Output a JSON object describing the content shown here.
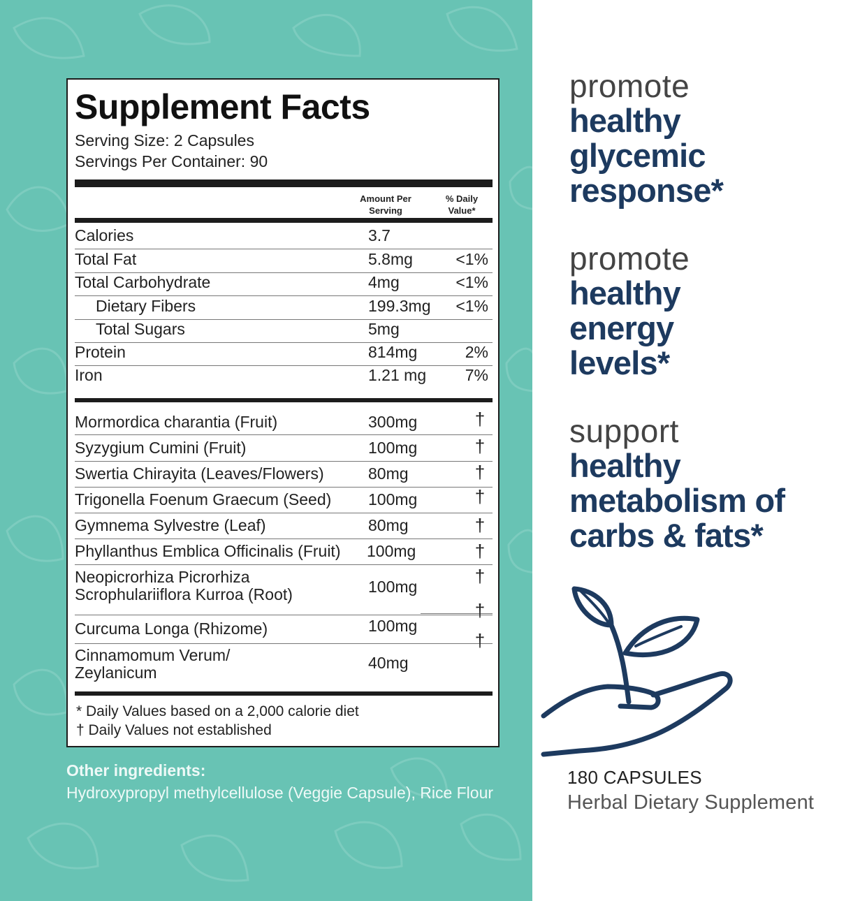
{
  "facts": {
    "title": "Supplement Facts",
    "serving_size": "Serving Size: 2 Capsules",
    "servings_per_container": "Servings Per Container: 90",
    "col_amount": "Amount Per Serving",
    "col_dv": "% Daily Value*",
    "nutrients": [
      {
        "name": "Calories",
        "amount": "3.7",
        "dv": ""
      },
      {
        "name": "Total Fat",
        "amount": "5.8mg",
        "dv": "<1%"
      },
      {
        "name": "Total Carbohydrate",
        "amount": "4mg",
        "dv": "<1%"
      },
      {
        "name": "Dietary Fibers",
        "amount": "199.3mg",
        "dv": "<1%"
      },
      {
        "name": "Total Sugars",
        "amount": "5mg",
        "dv": ""
      },
      {
        "name": "Protein",
        "amount": "814mg",
        "dv": "2%"
      },
      {
        "name": "Iron",
        "amount": "1.21 mg",
        "dv": "7%"
      }
    ],
    "herbs": [
      {
        "name": "Mormordica charantia (Fruit)",
        "amount": "300mg",
        "dv": "†"
      },
      {
        "name": "Syzygium Cumini (Fruit)",
        "amount": "100mg",
        "dv": "†"
      },
      {
        "name": "Swertia Chirayita  (Leaves/Flowers)",
        "amount": "80mg",
        "dv": "†"
      },
      {
        "name": "Trigonella Foenum Graecum (Seed)",
        "amount": "100mg",
        "dv": "†"
      },
      {
        "name": "Gymnema Sylvestre (Leaf)",
        "amount": "80mg",
        "dv": "†"
      },
      {
        "name": "Phyllanthus Emblica Officinalis (Fruit)",
        "amount": "100mg",
        "dv": "†"
      },
      {
        "name_line1": "Neopicrorhiza Picrorhiza",
        "name_line2": "Scrophulariiflora Kurroa (Root)",
        "amount": "100mg",
        "dv": "†"
      },
      {
        "name": "Curcuma Longa (Rhizome)",
        "amount": "100mg",
        "dv": "†"
      },
      {
        "name_line1": "Cinnamomum Verum/",
        "name_line2": "Zeylanicum",
        "amount": "40mg",
        "dv": "†"
      }
    ],
    "footnote1": "* Daily Values based on a 2,000 calorie diet",
    "footnote2": "† Daily Values not established"
  },
  "other": {
    "heading": "Other ingredients:",
    "text": "Hydroxypropyl methylcellulose (Veggie Capsule), Rice Flour"
  },
  "claims": [
    {
      "light": "promote",
      "bold1": "healthy",
      "bold2": "glycemic",
      "bold3": "response*"
    },
    {
      "light": "promote",
      "bold1": "healthy",
      "bold2": "energy",
      "bold3": "levels*"
    },
    {
      "light": "support",
      "bold1": "healthy",
      "bold2": "metabolism of",
      "bold3": "carbs & fats*"
    }
  ],
  "product": {
    "count": "180 CAPSULES",
    "type": "Herbal Dietary Supplement"
  },
  "colors": {
    "teal_background": "#68c3b4",
    "navy_text": "#1d3a5f"
  },
  "icons": [
    "leaf-pattern",
    "hand-with-sprout-icon"
  ]
}
